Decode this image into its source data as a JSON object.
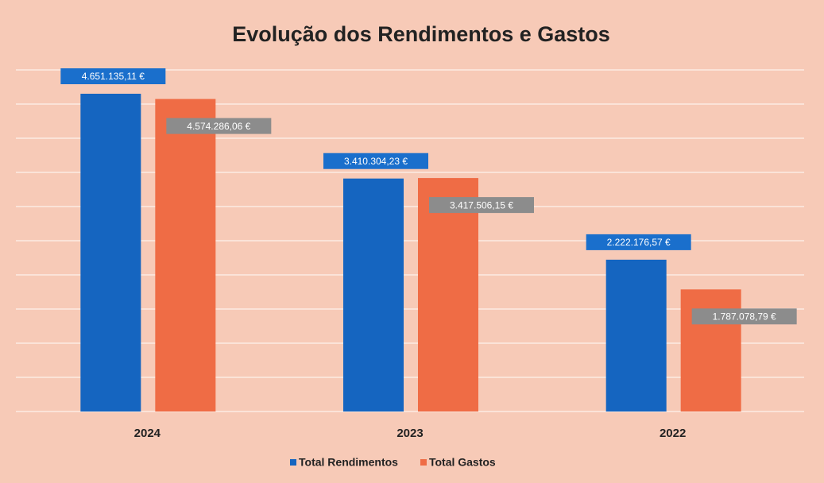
{
  "chart_data": {
    "type": "bar",
    "title": "Evolução dos Rendimentos e Gastos",
    "categories": [
      "2024",
      "2023",
      "2022"
    ],
    "series": [
      {
        "name": "Total Rendimentos",
        "color": "#1565c0",
        "values": [
          4651135.11,
          3410304.23,
          2222176.57
        ],
        "value_labels": [
          "4.651.135,11 €",
          "3.410.304,23 €",
          "2.222.176,57 €"
        ]
      },
      {
        "name": "Total Gastos",
        "color": "#ef6c45",
        "values": [
          4574286.06,
          3417506.15,
          1787078.79
        ],
        "value_labels": [
          "4.574.286,06 €",
          "3.417.506,15 €",
          "1.787.078,79 €"
        ]
      }
    ],
    "ylim": [
      0,
      5000000
    ],
    "yticks": [
      0,
      500000,
      1000000,
      1500000,
      2000000,
      2500000,
      3000000,
      3500000,
      4000000,
      4500000,
      5000000
    ],
    "grid": true,
    "legend": "bottom"
  }
}
